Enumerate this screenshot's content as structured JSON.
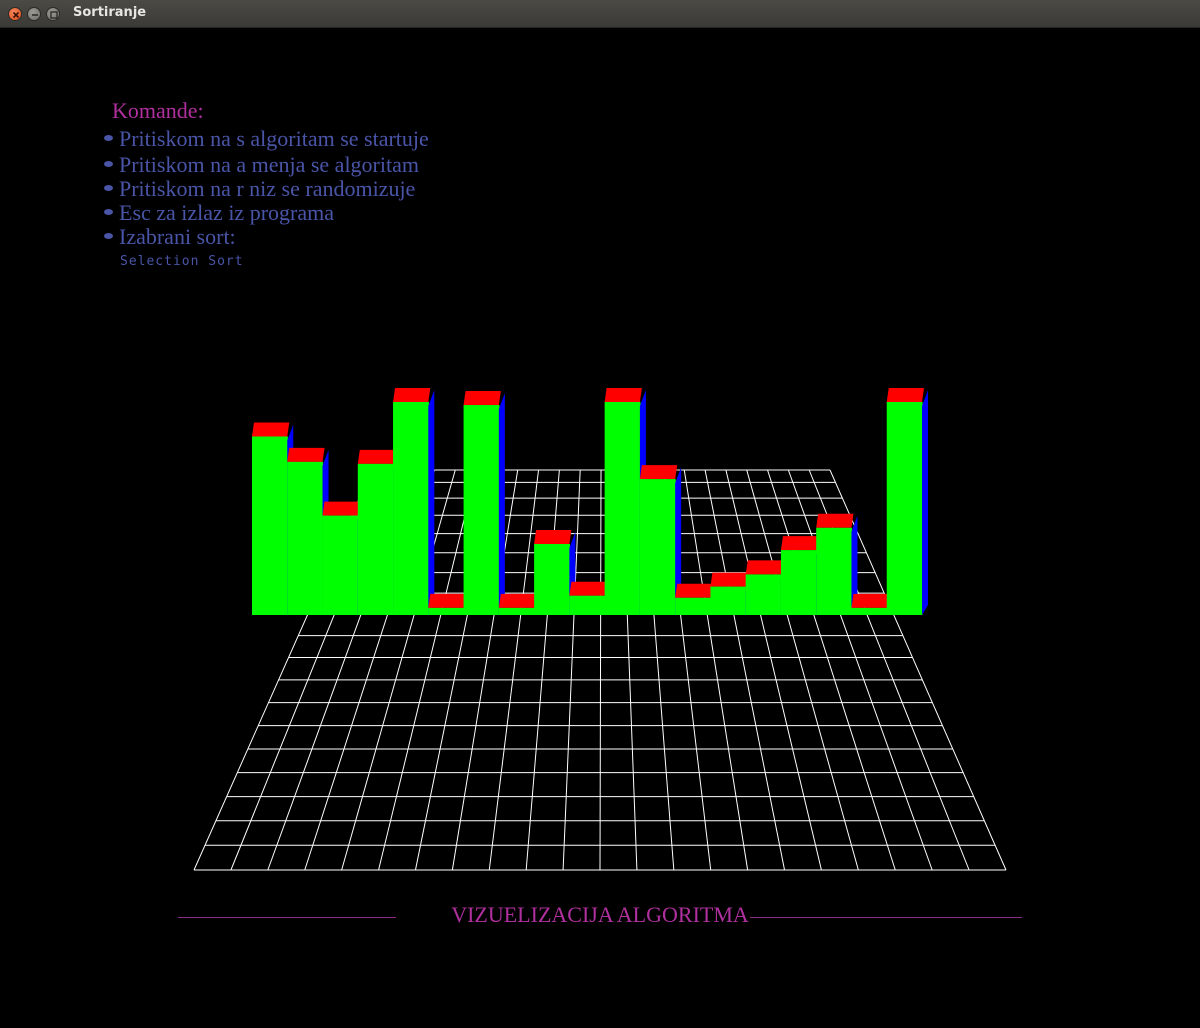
{
  "window": {
    "title": "Sortiranje"
  },
  "commands": {
    "heading": "Komande:",
    "items": [
      "Pritiskom na s algoritam se startuje",
      "Pritiskom na a menja se algoritam",
      "Pritiskom na r niz se randomizuje",
      "Esc za izlaz iz programa",
      "Izabrani sort:"
    ],
    "selected_sort": "Selection Sort"
  },
  "footer": {
    "title": "VIZUELIZACIJA ALGORITMA"
  },
  "visualization": {
    "values": [
      176,
      151,
      98,
      149,
      210,
      7,
      207,
      7,
      70,
      19,
      210,
      134,
      17,
      28,
      40,
      64,
      86,
      7,
      210
    ],
    "colors": {
      "bar_front": "#00ff00",
      "bar_top": "#ff0000",
      "bar_side": "#0000ff",
      "grid": "#ffffff",
      "text_heading": "#b0309f",
      "text_items": "#4a55a8"
    }
  }
}
